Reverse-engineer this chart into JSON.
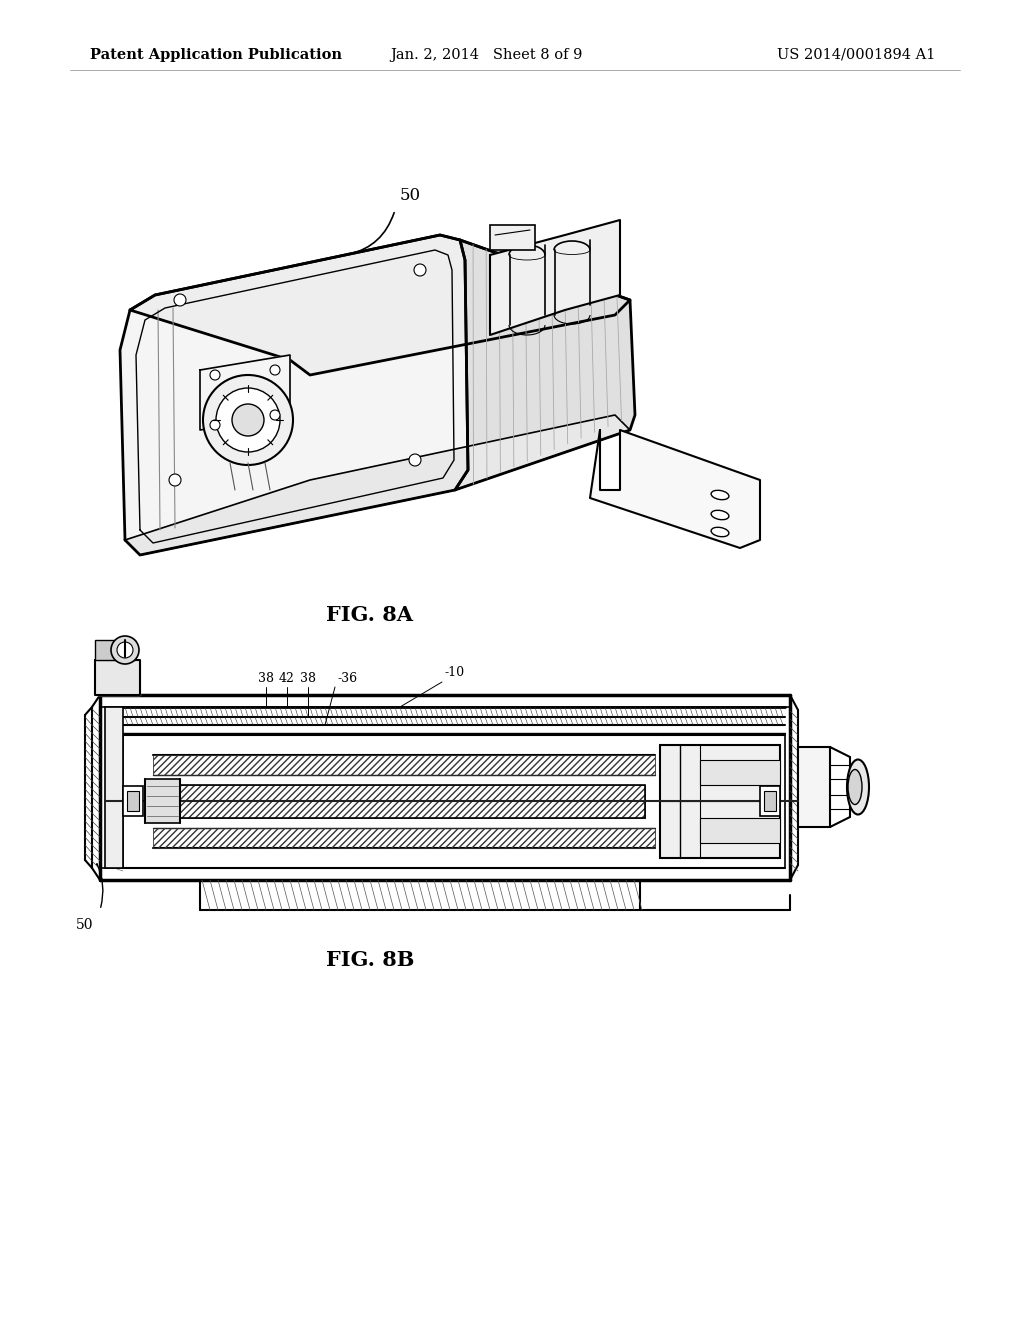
{
  "background_color": "#ffffff",
  "header_left": "Patent Application Publication",
  "header_center": "Jan. 2, 2014   Sheet 8 of 9",
  "header_right": "US 2014/0001894 A1",
  "fig8a_label": "FIG. 8A",
  "fig8b_label": "FIG. 8B",
  "line_color": "#000000",
  "fig_width": 10.24,
  "fig_height": 13.2,
  "dpi": 100
}
